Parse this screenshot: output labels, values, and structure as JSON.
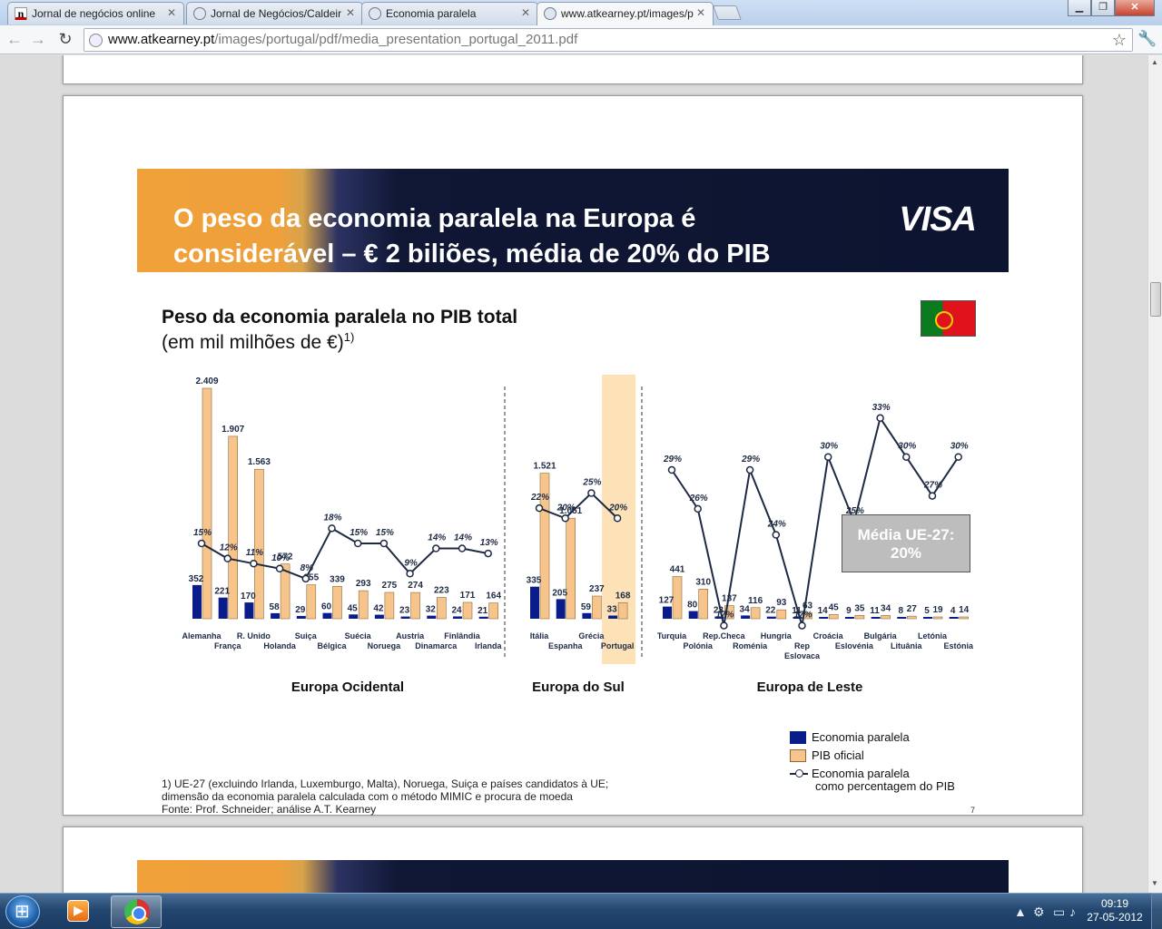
{
  "browser": {
    "tabs": [
      {
        "label": "Jornal de negócios online",
        "icon": "n-logo-icon",
        "active": false
      },
      {
        "label": "Jornal de Negócios/Caldeir",
        "icon": "globe-icon",
        "active": false
      },
      {
        "label": "Economia paralela",
        "icon": "globe-icon",
        "active": false
      },
      {
        "label": "www.atkearney.pt/images/p",
        "icon": "globe-icon",
        "active": true
      }
    ],
    "url_domain": "www.atkearney.pt",
    "url_path": "/images/portugal/pdf/media_presentation_portugal_2011.pdf"
  },
  "slide": {
    "banner_title_line1": "O peso da economia paralela na Europa é",
    "banner_title_line2": "considerável – € 2 biliões, média de 20% do PIB",
    "logo": "VISA",
    "chart_title": "Peso da economia paralela no PIB total",
    "chart_subtitle": "(em mil milhões de €)",
    "chart_subtitle_sup": "1)",
    "average_box_line1": "Média UE-27:",
    "average_box_line2": "20%",
    "legend": {
      "shadow": "Economia paralela",
      "gdp": "PIB oficial",
      "pct_line1": "Economia paralela",
      "pct_line2": "como percentagem do PIB"
    },
    "footnote_line1": "1) UE-27 (excluindo Irlanda, Luxemburgo, Malta), Noruega, Suiça e países candidatos à UE;",
    "footnote_line2": "dimensão da economia paralela calculada com o método MIMIC e procura de moeda",
    "footnote_line3": "Fonte: Prof. Schneider; análise A.T. Kearney",
    "page_number": "7",
    "colors": {
      "shadow": "#0a1c8a",
      "gdp": "#f7c58c",
      "highlight": "#fde2b8",
      "line": "#1e2a44"
    }
  },
  "chart_data": {
    "type": "bar",
    "groups": [
      {
        "name": "Europa Ocidental",
        "countries": [
          {
            "label": "Alemanha",
            "shadow": 352,
            "shadow_label": "352",
            "gdp": 2409,
            "gdp_label": "2.409",
            "pct": 15
          },
          {
            "label": "França",
            "shadow": 221,
            "shadow_label": "221",
            "gdp": 1907,
            "gdp_label": "1.907",
            "pct": 12
          },
          {
            "label": "R. Unido",
            "shadow": 170,
            "shadow_label": "170",
            "gdp": 1563,
            "gdp_label": "1.563",
            "pct": 11
          },
          {
            "label": "Holanda",
            "shadow": 58,
            "shadow_label": "58",
            "gdp": 572,
            "gdp_label": "572",
            "pct": 10
          },
          {
            "label": "Suiça",
            "shadow": 29,
            "shadow_label": "29",
            "gdp": 355,
            "gdp_label": "355",
            "pct": 8
          },
          {
            "label": "Bélgica",
            "shadow": 60,
            "shadow_label": "60",
            "gdp": 339,
            "gdp_label": "339",
            "pct": 18
          },
          {
            "label": "Suécia",
            "shadow": 45,
            "shadow_label": "45",
            "gdp": 293,
            "gdp_label": "293",
            "pct": 15
          },
          {
            "label": "Noruega",
            "shadow": 42,
            "shadow_label": "42",
            "gdp": 275,
            "gdp_label": "275",
            "pct": 15
          },
          {
            "label": "Austria",
            "shadow": 23,
            "shadow_label": "23",
            "gdp": 274,
            "gdp_label": "274",
            "pct": 9
          },
          {
            "label": "Dinamarca",
            "shadow": 32,
            "shadow_label": "32",
            "gdp": 223,
            "gdp_label": "223",
            "pct": 14
          },
          {
            "label": "Finlândia",
            "shadow": 24,
            "shadow_label": "24",
            "gdp": 171,
            "gdp_label": "171",
            "pct": 14
          },
          {
            "label": "Irlanda",
            "shadow": 21,
            "shadow_label": "21",
            "gdp": 164,
            "gdp_label": "164",
            "pct": 13
          }
        ]
      },
      {
        "name": "Europa do Sul",
        "countries": [
          {
            "label": "Itália",
            "shadow": 335,
            "shadow_label": "335",
            "gdp": 1521,
            "gdp_label": "1.521",
            "pct": 22
          },
          {
            "label": "Espanha",
            "shadow": 205,
            "shadow_label": "205",
            "gdp": 1051,
            "gdp_label": "1.051",
            "pct": 20
          },
          {
            "label": "Grécia",
            "shadow": 59,
            "shadow_label": "59",
            "gdp": 237,
            "gdp_label": "237",
            "pct": 25
          },
          {
            "label": "Portugal",
            "shadow": 33,
            "shadow_label": "33",
            "gdp": 168,
            "gdp_label": "168",
            "pct": 20,
            "highlight": true
          }
        ]
      },
      {
        "name": "Europa de Leste",
        "countries": [
          {
            "label": "Turquia",
            "shadow": 127,
            "shadow_label": "127",
            "gdp": 441,
            "gdp_label": "441",
            "pct": 29
          },
          {
            "label": "Polónia",
            "shadow": 80,
            "shadow_label": "80",
            "gdp": 310,
            "gdp_label": "310",
            "pct": 26
          },
          {
            "label": "Rep.Checa",
            "shadow": 23,
            "shadow_label": "23",
            "gdp": 137,
            "gdp_label": "137",
            "pct": 17
          },
          {
            "label": "Roménia",
            "shadow": 34,
            "shadow_label": "34",
            "gdp": 116,
            "gdp_label": "116",
            "pct": 29
          },
          {
            "label": "Hungria",
            "shadow": 22,
            "shadow_label": "22",
            "gdp": 93,
            "gdp_label": "93",
            "pct": 24
          },
          {
            "label": "Rep Eslovaca",
            "label_lines": [
              "Rep",
              "Eslovaca"
            ],
            "shadow": 11,
            "shadow_label": "11",
            "gdp": 63,
            "gdp_label": "63",
            "pct": 17
          },
          {
            "label": "Croácia",
            "shadow": 14,
            "shadow_label": "14",
            "gdp": 45,
            "gdp_label": "45",
            "pct": 30
          },
          {
            "label": "Eslovénia",
            "shadow": 9,
            "shadow_label": "9",
            "gdp": 35,
            "gdp_label": "35",
            "pct": 25
          },
          {
            "label": "Bulgária",
            "shadow": 11,
            "shadow_label": "11",
            "gdp": 34,
            "gdp_label": "34",
            "pct": 33
          },
          {
            "label": "Lituânia",
            "shadow": 8,
            "shadow_label": "8",
            "gdp": 27,
            "gdp_label": "27",
            "pct": 30
          },
          {
            "label": "Letónia",
            "shadow": 5,
            "shadow_label": "5",
            "gdp": 19,
            "gdp_label": "19",
            "pct": 27
          },
          {
            "label": "Estónia",
            "shadow": 4,
            "shadow_label": "4",
            "gdp": 14,
            "gdp_label": "14",
            "pct": 30
          }
        ]
      }
    ]
  },
  "taskbar": {
    "clock_time": "09:19",
    "clock_date": "27-05-2012"
  }
}
